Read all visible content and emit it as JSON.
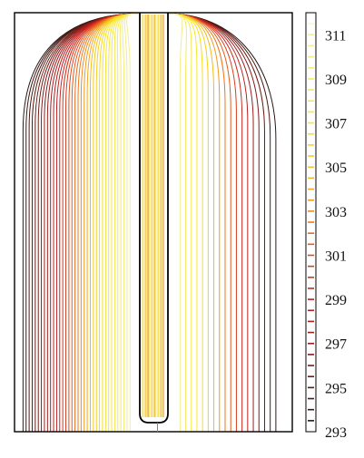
{
  "chart_data": {
    "type": "contour",
    "title": "",
    "xlabel": "",
    "ylabel": "",
    "grid": false,
    "colorbar": {
      "range": [
        293,
        312
      ],
      "tick_values": [
        293,
        295,
        297,
        299,
        301,
        303,
        305,
        307,
        309,
        311
      ],
      "tick_labels": [
        "293",
        "295",
        "297",
        "299",
        "301",
        "303",
        "305",
        "307",
        "309",
        "311"
      ],
      "placement": "right",
      "color_stops": [
        {
          "value": 293,
          "color": "#1a1a1a"
        },
        {
          "value": 295,
          "color": "#5a1a10"
        },
        {
          "value": 297,
          "color": "#8f1d1a"
        },
        {
          "value": 299,
          "color": "#c41e20"
        },
        {
          "value": 301,
          "color": "#e04a1c"
        },
        {
          "value": 303,
          "color": "#ee8a1c"
        },
        {
          "value": 305,
          "color": "#f5c81a"
        },
        {
          "value": 307,
          "color": "#f7e62a"
        },
        {
          "value": 309,
          "color": "#f6ea5a"
        },
        {
          "value": 311,
          "color": "#f3ee9c"
        },
        {
          "value": 312,
          "color": "#ffffff"
        }
      ]
    },
    "contour_levels": [
      293.5,
      294,
      294.5,
      295,
      295.5,
      296,
      296.5,
      297,
      297.5,
      298,
      298.5,
      299,
      299.5,
      300,
      300.5,
      301,
      301.5,
      302,
      302.5,
      303,
      303.5,
      304,
      304.5,
      305,
      305.5,
      306,
      306.5,
      307,
      307.5,
      308,
      308.5,
      309,
      309.5,
      310,
      310.5,
      311
    ],
    "domain_outline_color": "#000000",
    "insert_outline_color": "#000000"
  }
}
